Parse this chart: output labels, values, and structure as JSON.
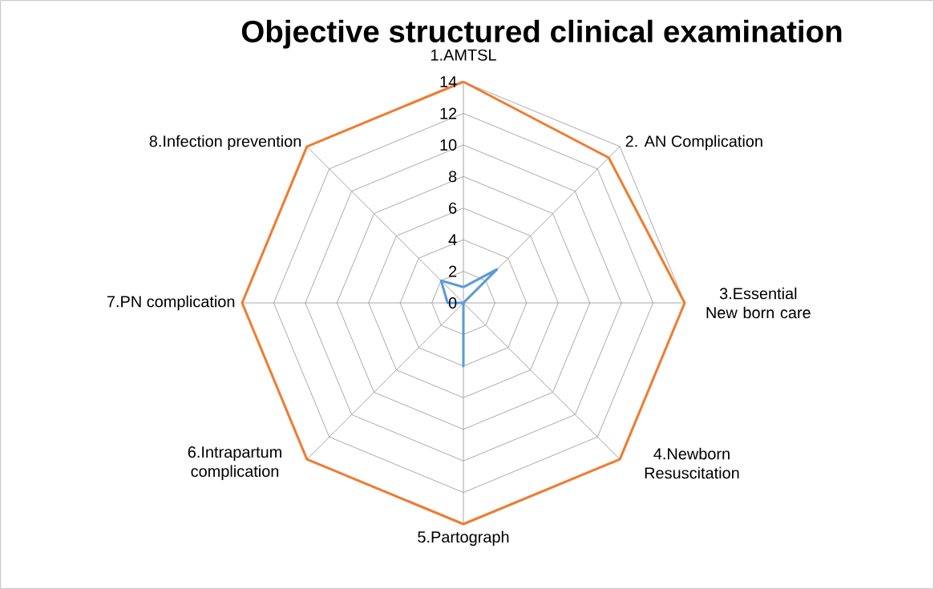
{
  "chart_data": {
    "type": "radar",
    "title": "Objective structured clinical examination",
    "categories": [
      "1.AMTSL",
      "2. AN Complication",
      "3.Essential New born care",
      "4.Newborn Resuscitation",
      "5.Partograph",
      "6.Intrapartum complication",
      "7.PN complication",
      "8.Infection prevention"
    ],
    "series": [
      {
        "color": "#ed7d31",
        "values": [
          14,
          13,
          14,
          14,
          14,
          14,
          14,
          14
        ]
      },
      {
        "color": "#5b9bd5",
        "values": [
          1,
          3,
          0,
          0,
          4,
          0,
          1,
          2
        ]
      }
    ],
    "ylim": [
      0,
      14
    ],
    "yticks": [
      0,
      2,
      4,
      6,
      8,
      10,
      12,
      14
    ],
    "grid": true
  }
}
